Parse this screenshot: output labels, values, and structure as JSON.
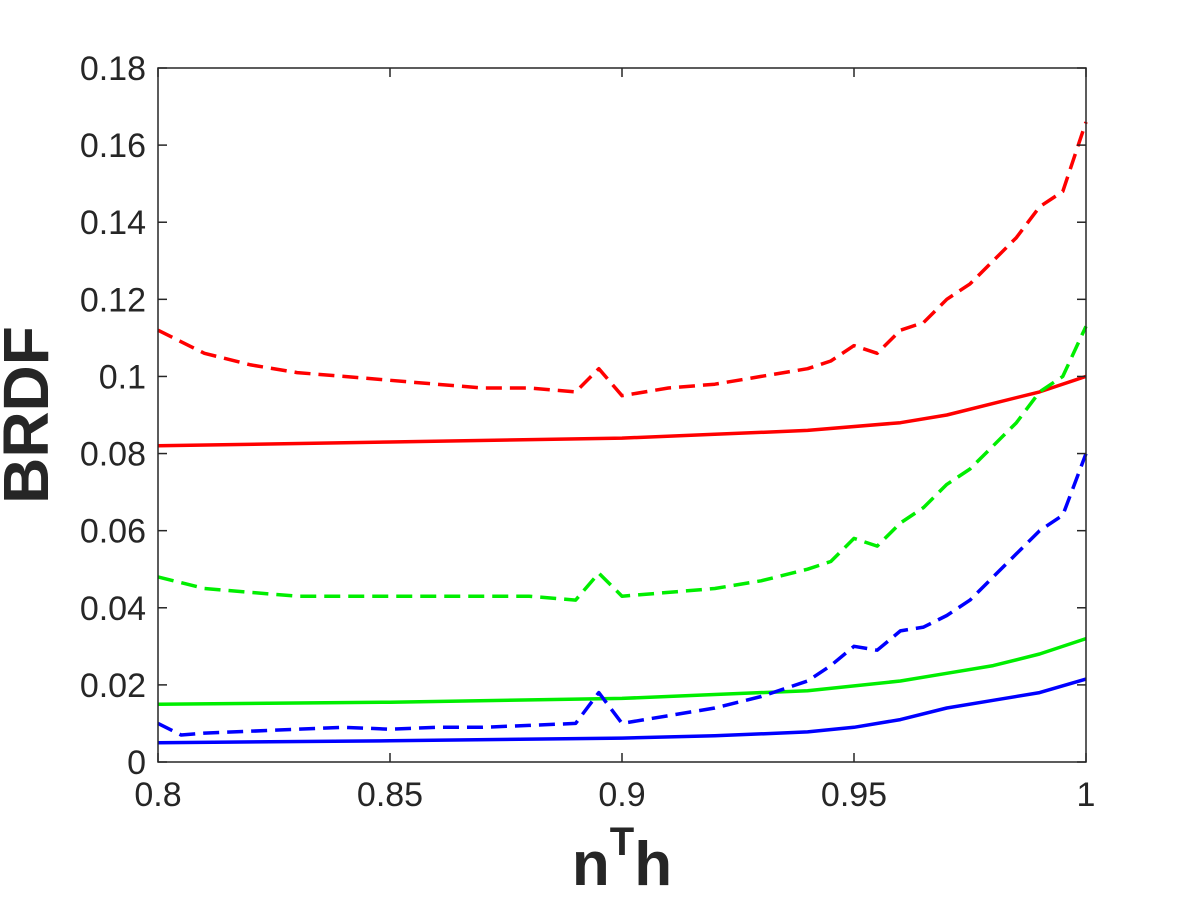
{
  "chart_data": {
    "type": "line",
    "title": "",
    "xlabel_base": "n",
    "xlabel_sup": "T",
    "xlabel_end": "h",
    "ylabel": "BRDF",
    "xlim": [
      0.8,
      1.0
    ],
    "ylim": [
      0,
      0.18
    ],
    "grid": false,
    "xticks": [
      0.8,
      0.85,
      0.9,
      0.95,
      1.0
    ],
    "xtick_labels": [
      "0.8",
      "0.85",
      "0.9",
      "0.95",
      "1"
    ],
    "yticks": [
      0,
      0.02,
      0.04,
      0.06,
      0.08,
      0.1,
      0.12,
      0.14,
      0.16,
      0.18
    ],
    "ytick_labels": [
      "0",
      "0.02",
      "0.04",
      "0.06",
      "0.08",
      "0.1",
      "0.12",
      "0.14",
      "0.16",
      "0.18"
    ],
    "series": [
      {
        "color": "#ff0000",
        "style": "solid",
        "x": [
          0.8,
          0.85,
          0.9,
          0.92,
          0.94,
          0.96,
          0.97,
          0.98,
          0.99,
          1.0
        ],
        "y": [
          0.082,
          0.083,
          0.084,
          0.085,
          0.086,
          0.088,
          0.09,
          0.093,
          0.096,
          0.1
        ]
      },
      {
        "color": "#ff0000",
        "style": "dashed",
        "x": [
          0.8,
          0.81,
          0.82,
          0.83,
          0.84,
          0.85,
          0.86,
          0.87,
          0.88,
          0.89,
          0.895,
          0.9,
          0.91,
          0.92,
          0.93,
          0.94,
          0.945,
          0.95,
          0.955,
          0.96,
          0.965,
          0.97,
          0.975,
          0.98,
          0.985,
          0.99,
          0.995,
          1.0
        ],
        "y": [
          0.112,
          0.106,
          0.103,
          0.101,
          0.1,
          0.099,
          0.098,
          0.097,
          0.097,
          0.096,
          0.102,
          0.095,
          0.097,
          0.098,
          0.1,
          0.102,
          0.104,
          0.108,
          0.106,
          0.112,
          0.114,
          0.12,
          0.124,
          0.13,
          0.136,
          0.144,
          0.148,
          0.166
        ]
      },
      {
        "color": "#00ee00",
        "style": "solid",
        "x": [
          0.8,
          0.85,
          0.9,
          0.92,
          0.94,
          0.96,
          0.97,
          0.98,
          0.99,
          1.0
        ],
        "y": [
          0.015,
          0.0155,
          0.0165,
          0.0175,
          0.0185,
          0.021,
          0.023,
          0.025,
          0.028,
          0.032
        ]
      },
      {
        "color": "#00ee00",
        "style": "dashed",
        "x": [
          0.8,
          0.81,
          0.82,
          0.83,
          0.84,
          0.85,
          0.86,
          0.87,
          0.88,
          0.89,
          0.895,
          0.9,
          0.91,
          0.92,
          0.93,
          0.94,
          0.945,
          0.95,
          0.955,
          0.96,
          0.965,
          0.97,
          0.975,
          0.98,
          0.985,
          0.99,
          0.995,
          1.0
        ],
        "y": [
          0.048,
          0.045,
          0.044,
          0.043,
          0.043,
          0.043,
          0.043,
          0.043,
          0.043,
          0.042,
          0.049,
          0.043,
          0.044,
          0.045,
          0.047,
          0.05,
          0.052,
          0.058,
          0.056,
          0.062,
          0.066,
          0.072,
          0.076,
          0.082,
          0.088,
          0.096,
          0.1,
          0.113
        ]
      },
      {
        "color": "#0000ff",
        "style": "solid",
        "x": [
          0.8,
          0.85,
          0.9,
          0.92,
          0.94,
          0.95,
          0.96,
          0.97,
          0.98,
          0.99,
          1.0
        ],
        "y": [
          0.005,
          0.0055,
          0.0062,
          0.0068,
          0.0078,
          0.009,
          0.011,
          0.014,
          0.016,
          0.018,
          0.0215
        ]
      },
      {
        "color": "#0000ff",
        "style": "dashed",
        "x": [
          0.8,
          0.805,
          0.81,
          0.82,
          0.83,
          0.84,
          0.85,
          0.86,
          0.87,
          0.88,
          0.89,
          0.895,
          0.9,
          0.91,
          0.92,
          0.93,
          0.94,
          0.945,
          0.95,
          0.955,
          0.96,
          0.965,
          0.97,
          0.975,
          0.98,
          0.985,
          0.99,
          0.995,
          1.0
        ],
        "y": [
          0.01,
          0.007,
          0.0075,
          0.008,
          0.0085,
          0.009,
          0.0085,
          0.009,
          0.009,
          0.0095,
          0.01,
          0.018,
          0.01,
          0.012,
          0.014,
          0.017,
          0.021,
          0.025,
          0.03,
          0.029,
          0.034,
          0.035,
          0.038,
          0.042,
          0.048,
          0.054,
          0.06,
          0.064,
          0.08
        ]
      }
    ]
  }
}
